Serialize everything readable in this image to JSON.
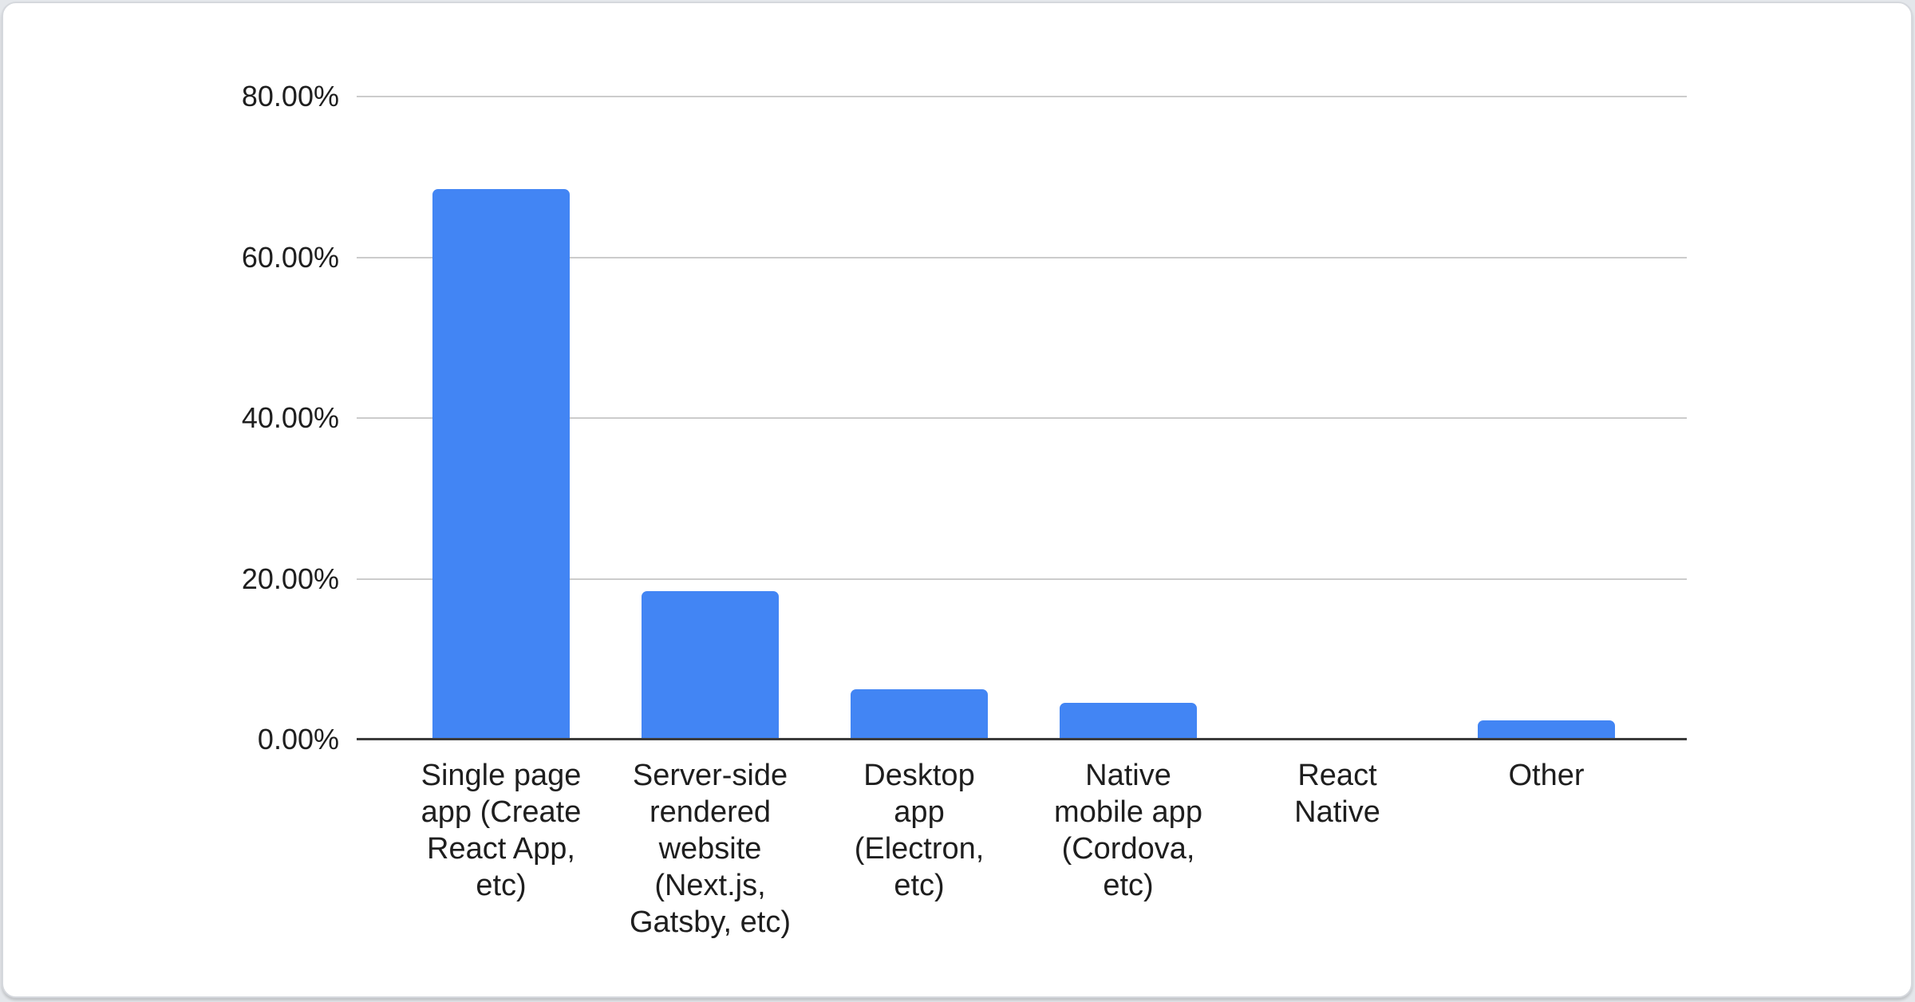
{
  "chart_data": {
    "type": "bar",
    "title": "",
    "xlabel": "",
    "ylabel": "",
    "ylim": [
      0,
      80
    ],
    "grid": true,
    "legend": "none",
    "y_tick_labels": [
      "80.00%",
      "60.00%",
      "40.00%",
      "20.00%",
      "0.00%"
    ],
    "y_tick_values": [
      80,
      60,
      40,
      20,
      0
    ],
    "values": [
      68.5,
      18.5,
      6.3,
      4.6,
      0,
      2.4
    ],
    "categories": [
      {
        "label": "Single page app (Create React App, etc)",
        "lines": [
          "Single page",
          "app (Create",
          "React App,",
          "etc)"
        ],
        "value_pct": 68.5
      },
      {
        "label": "Server-side rendered website (Next.js, Gatsby, etc)",
        "lines": [
          "Server-side",
          "rendered",
          "website",
          "(Next.js,",
          "Gatsby, etc)"
        ],
        "value_pct": 18.5
      },
      {
        "label": "Desktop app (Electron, etc)",
        "lines": [
          "Desktop",
          "app",
          "(Electron,",
          "etc)"
        ],
        "value_pct": 6.3
      },
      {
        "label": "Native mobile app (Cordova, etc)",
        "lines": [
          "Native",
          "mobile app",
          "(Cordova,",
          "etc)"
        ],
        "value_pct": 4.6
      },
      {
        "label": "React Native",
        "lines": [
          "React",
          "Native"
        ],
        "value_pct": 0
      },
      {
        "label": "Other",
        "lines": [
          "Other"
        ],
        "value_pct": 2.4
      }
    ],
    "colors": {
      "bar": "#4285f4",
      "gridline": "#cccccc",
      "baseline": "#3b3b3b",
      "text": "#1e1e1e",
      "card_background": "#ffffff",
      "card_border": "#d5d8dd",
      "page_background": "#e4e7eb"
    }
  }
}
